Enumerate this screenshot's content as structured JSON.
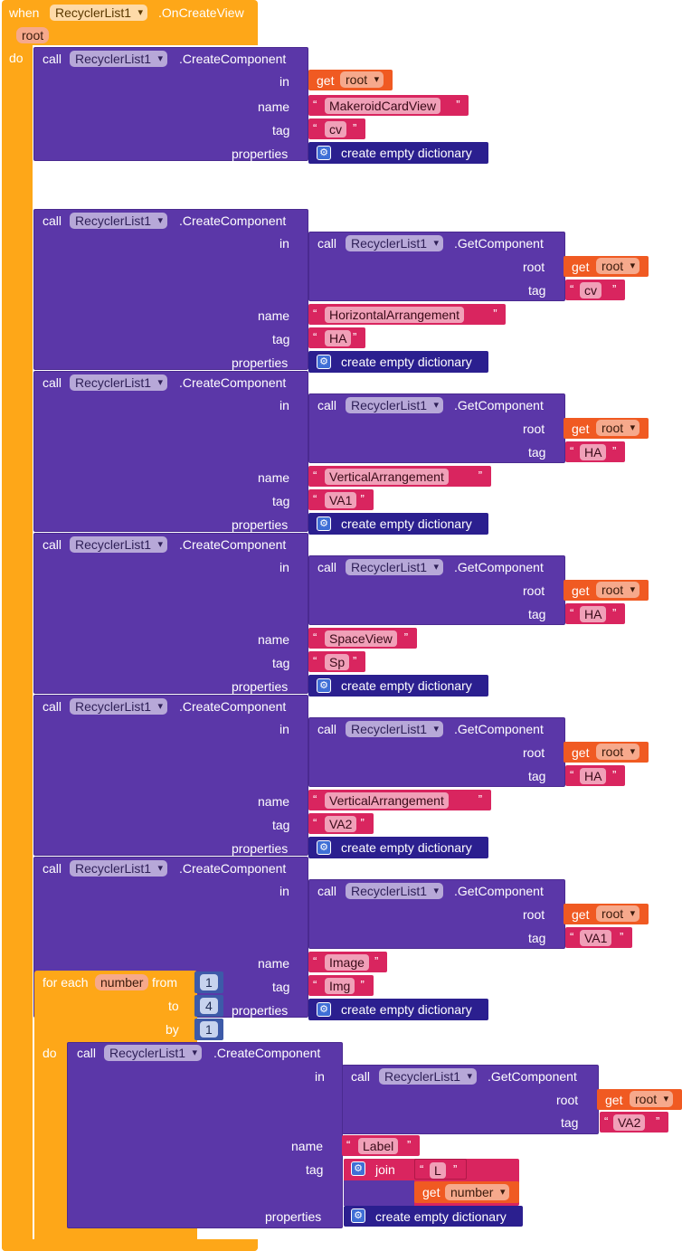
{
  "event": {
    "when_label": "when",
    "component": "RecyclerList1",
    "event_name": ".OnCreateView",
    "param": "root",
    "do_label": "do"
  },
  "labels": {
    "call": "call",
    "create_component": ".CreateComponent",
    "get_component": ".GetComponent",
    "in": "in",
    "name": "name",
    "tag": "tag",
    "properties": "properties",
    "root": "root",
    "get": "get",
    "create_empty_dictionary": "create empty dictionary",
    "component": "RecyclerList1",
    "open_quote": "“",
    "close_quote": "”",
    "gear_glyph": "⚙"
  },
  "blocks": [
    {
      "name": "MakeroidCardView",
      "tag": "cv"
    },
    {
      "parent_tag": "cv",
      "name": "HorizontalArrangement",
      "tag": "HA"
    },
    {
      "parent_tag": "HA",
      "name": "VerticalArrangement",
      "tag": "VA1"
    },
    {
      "parent_tag": "HA",
      "name": "SpaceView",
      "tag": "Sp"
    },
    {
      "parent_tag": "HA",
      "name": "VerticalArrangement",
      "tag": "VA2"
    },
    {
      "parent_tag": "VA1",
      "name": "Image",
      "tag": "Img"
    }
  ],
  "loop": {
    "for_each": "for each",
    "var": "number",
    "from_label": "from",
    "from": "1",
    "to_label": "to",
    "to": "4",
    "by_label": "by",
    "by": "1",
    "do_label": "do",
    "parent_tag": "VA2",
    "name": "Label",
    "join_label": "join",
    "join_text": "L",
    "get_var": "number"
  }
}
